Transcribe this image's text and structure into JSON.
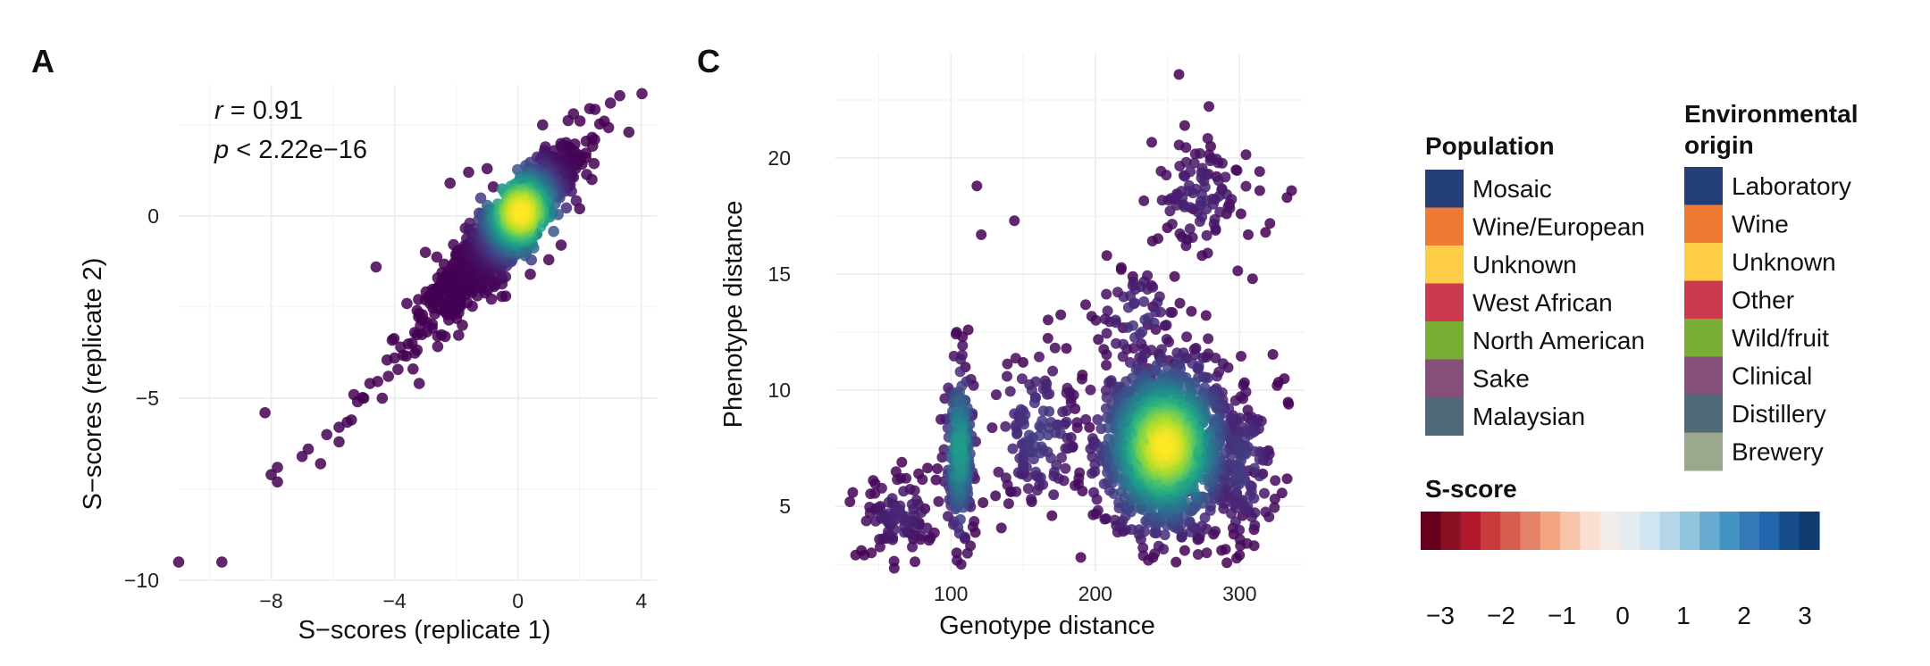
{
  "panels": {
    "a": {
      "label": "A"
    },
    "c": {
      "label": "C"
    }
  },
  "chart_data": [
    {
      "type": "scatter",
      "panel": "A",
      "xlabel": "S−scores (replicate 1)",
      "ylabel": "S−scores (replicate 2)",
      "xlim": [
        -11,
        4.5
      ],
      "ylim": [
        -10,
        3.6
      ],
      "xticks": [
        -8,
        -4,
        0,
        4
      ],
      "xtick_labels": [
        "−8",
        "−4",
        "0",
        "4"
      ],
      "yticks": [
        0,
        -5,
        -10
      ],
      "ytick_labels": [
        "0",
        "−5",
        "−10"
      ],
      "annotation": {
        "r_symbol": "r",
        "r_text": " = 0.91",
        "p_symbol": "p",
        "p_text": " < 2.22e−16"
      },
      "density_colored": true,
      "points": [
        [
          -11.0,
          -9.5
        ],
        [
          -9.6,
          -9.5
        ],
        [
          -8.2,
          -5.4
        ],
        [
          -8.0,
          -7.1
        ],
        [
          -7.8,
          -6.9
        ],
        [
          -7.8,
          -7.3
        ],
        [
          -7.0,
          -6.6
        ],
        [
          -6.8,
          -6.4
        ],
        [
          -6.4,
          -6.8
        ],
        [
          -6.2,
          -6.0
        ],
        [
          -5.8,
          -5.8
        ],
        [
          -5.4,
          -5.6
        ],
        [
          -5.2,
          -5.1
        ],
        [
          -5.0,
          -5.0
        ],
        [
          -4.8,
          -4.6
        ],
        [
          -4.4,
          -5.0
        ],
        [
          -4.2,
          -4.4
        ],
        [
          -4.0,
          -3.9
        ],
        [
          -3.8,
          -3.6
        ],
        [
          -4.6,
          -1.4
        ],
        [
          -3.0,
          -1.0
        ],
        [
          -3.6,
          -2.4
        ],
        [
          -3.0,
          -2.3
        ],
        [
          -2.6,
          -1.7
        ],
        [
          -2.2,
          0.9
        ],
        [
          -1.6,
          1.2
        ],
        [
          -1.0,
          1.3
        ],
        [
          0.4,
          -1.6
        ],
        [
          1.0,
          -1.2
        ],
        [
          1.4,
          -0.8
        ],
        [
          2.0,
          0.2
        ],
        [
          2.4,
          1.0
        ],
        [
          2.8,
          2.6
        ],
        [
          3.0,
          3.1
        ],
        [
          3.3,
          3.3
        ],
        [
          3.6,
          2.3
        ],
        [
          0.8,
          2.5
        ],
        [
          1.6,
          1.9
        ],
        [
          -0.4,
          -2.2
        ],
        [
          -1.8,
          -3.0
        ],
        [
          -2.6,
          -3.3
        ],
        [
          -3.4,
          -4.2
        ],
        [
          -1.2,
          -1.9
        ],
        [
          0.6,
          -0.5
        ],
        [
          2.2,
          1.6
        ],
        [
          -5.8,
          -6.2
        ],
        [
          -3.2,
          -4.6
        ],
        [
          -2.0,
          -2.6
        ],
        [
          1.8,
          2.8
        ],
        [
          -0.8,
          0.8
        ]
      ],
      "regression_line": {
        "x": [
          -8.5,
          3.8
        ],
        "y": [
          -8.3,
          3.3
        ]
      }
    },
    {
      "type": "scatter",
      "panel": "C",
      "xlabel": "Genotype distance",
      "ylabel": "Phenotype distance",
      "xlim": [
        20,
        345
      ],
      "ylim": [
        2.2,
        24.5
      ],
      "xticks": [
        100,
        200,
        300
      ],
      "xtick_labels": [
        "100",
        "200",
        "300"
      ],
      "yticks": [
        5,
        10,
        15,
        20
      ],
      "ytick_labels": [
        "5",
        "10",
        "15",
        "20"
      ],
      "density_colored": true,
      "points": [
        [
          30,
          5.2
        ],
        [
          32,
          5.6
        ],
        [
          34,
          2.9
        ],
        [
          38,
          3.1
        ],
        [
          40,
          2.9
        ],
        [
          48,
          4.9
        ],
        [
          54,
          4.6
        ],
        [
          58,
          4.2
        ],
        [
          62,
          6.5
        ],
        [
          66,
          6.9
        ],
        [
          70,
          3.9
        ],
        [
          74,
          3.6
        ],
        [
          78,
          4.3
        ],
        [
          82,
          4.9
        ],
        [
          104,
          12.5
        ],
        [
          108,
          12.3
        ],
        [
          110,
          11.0
        ],
        [
          112,
          12.6
        ],
        [
          104,
          3.0
        ],
        [
          118,
          18.8
        ],
        [
          121,
          16.7
        ],
        [
          144,
          17.3
        ],
        [
          150,
          11.2
        ],
        [
          156,
          5.2
        ],
        [
          170,
          4.6
        ],
        [
          180,
          11.8
        ],
        [
          186,
          9.2
        ],
        [
          190,
          2.8
        ],
        [
          196,
          8.4
        ],
        [
          208,
          15.8
        ],
        [
          218,
          15.2
        ],
        [
          226,
          14.9
        ],
        [
          240,
          13.6
        ],
        [
          250,
          17.0
        ],
        [
          258,
          23.6
        ],
        [
          262,
          21.4
        ],
        [
          268,
          17.8
        ],
        [
          274,
          15.8
        ],
        [
          280,
          20.5
        ],
        [
          284,
          19.2
        ],
        [
          291,
          17.6
        ],
        [
          301,
          17.6
        ],
        [
          306,
          16.7
        ],
        [
          309,
          14.8
        ],
        [
          314,
          18.6
        ],
        [
          318,
          16.8
        ],
        [
          336,
          18.6
        ],
        [
          326,
          10.2
        ],
        [
          334,
          9.4
        ],
        [
          331,
          10.5
        ],
        [
          302,
          4.6
        ],
        [
          310,
          4.0
        ],
        [
          296,
          3.8
        ],
        [
          316,
          6.4
        ],
        [
          320,
          7.4
        ],
        [
          256,
          2.6
        ],
        [
          262,
          3.1
        ],
        [
          272,
          3.6
        ],
        [
          282,
          3.8
        ],
        [
          240,
          2.8
        ]
      ]
    }
  ],
  "legends": {
    "population": {
      "title": "Population",
      "items": [
        {
          "label": "Mosaic",
          "color": "#243f77"
        },
        {
          "label": "Wine/European",
          "color": "#ee7a33"
        },
        {
          "label": "Unknown",
          "color": "#fecd47"
        },
        {
          "label": "West African",
          "color": "#cd394f"
        },
        {
          "label": "North American",
          "color": "#7aad33"
        },
        {
          "label": "Sake",
          "color": "#844f7b"
        },
        {
          "label": "Malaysian",
          "color": "#4f6978"
        }
      ]
    },
    "environment": {
      "title_line1": "Environmental",
      "title_line2": "origin",
      "items": [
        {
          "label": "Laboratory",
          "color": "#243f77"
        },
        {
          "label": "Wine",
          "color": "#ee7a33"
        },
        {
          "label": "Unknown",
          "color": "#fecd47"
        },
        {
          "label": "Other",
          "color": "#cd394f"
        },
        {
          "label": "Wild/fruit",
          "color": "#7aad33"
        },
        {
          "label": "Clinical",
          "color": "#844f7b"
        },
        {
          "label": "Distillery",
          "color": "#4f6978"
        },
        {
          "label": "Brewery",
          "color": "#9aa88e"
        }
      ]
    },
    "sscore": {
      "title": "S-score",
      "ticks": [
        "−3",
        "−2",
        "−1",
        "0",
        "1",
        "2",
        "3"
      ],
      "colors": [
        "#67001f",
        "#8c1024",
        "#b2182b",
        "#c83a3b",
        "#d6604d",
        "#e58368",
        "#f4a582",
        "#f8c4a9",
        "#fbe0d2",
        "#f2ece9",
        "#e3ecf1",
        "#d1e5f0",
        "#b5d5e8",
        "#92c5de",
        "#6aabd1",
        "#4393c3",
        "#3279b6",
        "#2166ac",
        "#174d8a",
        "#0f3b6f"
      ]
    }
  }
}
